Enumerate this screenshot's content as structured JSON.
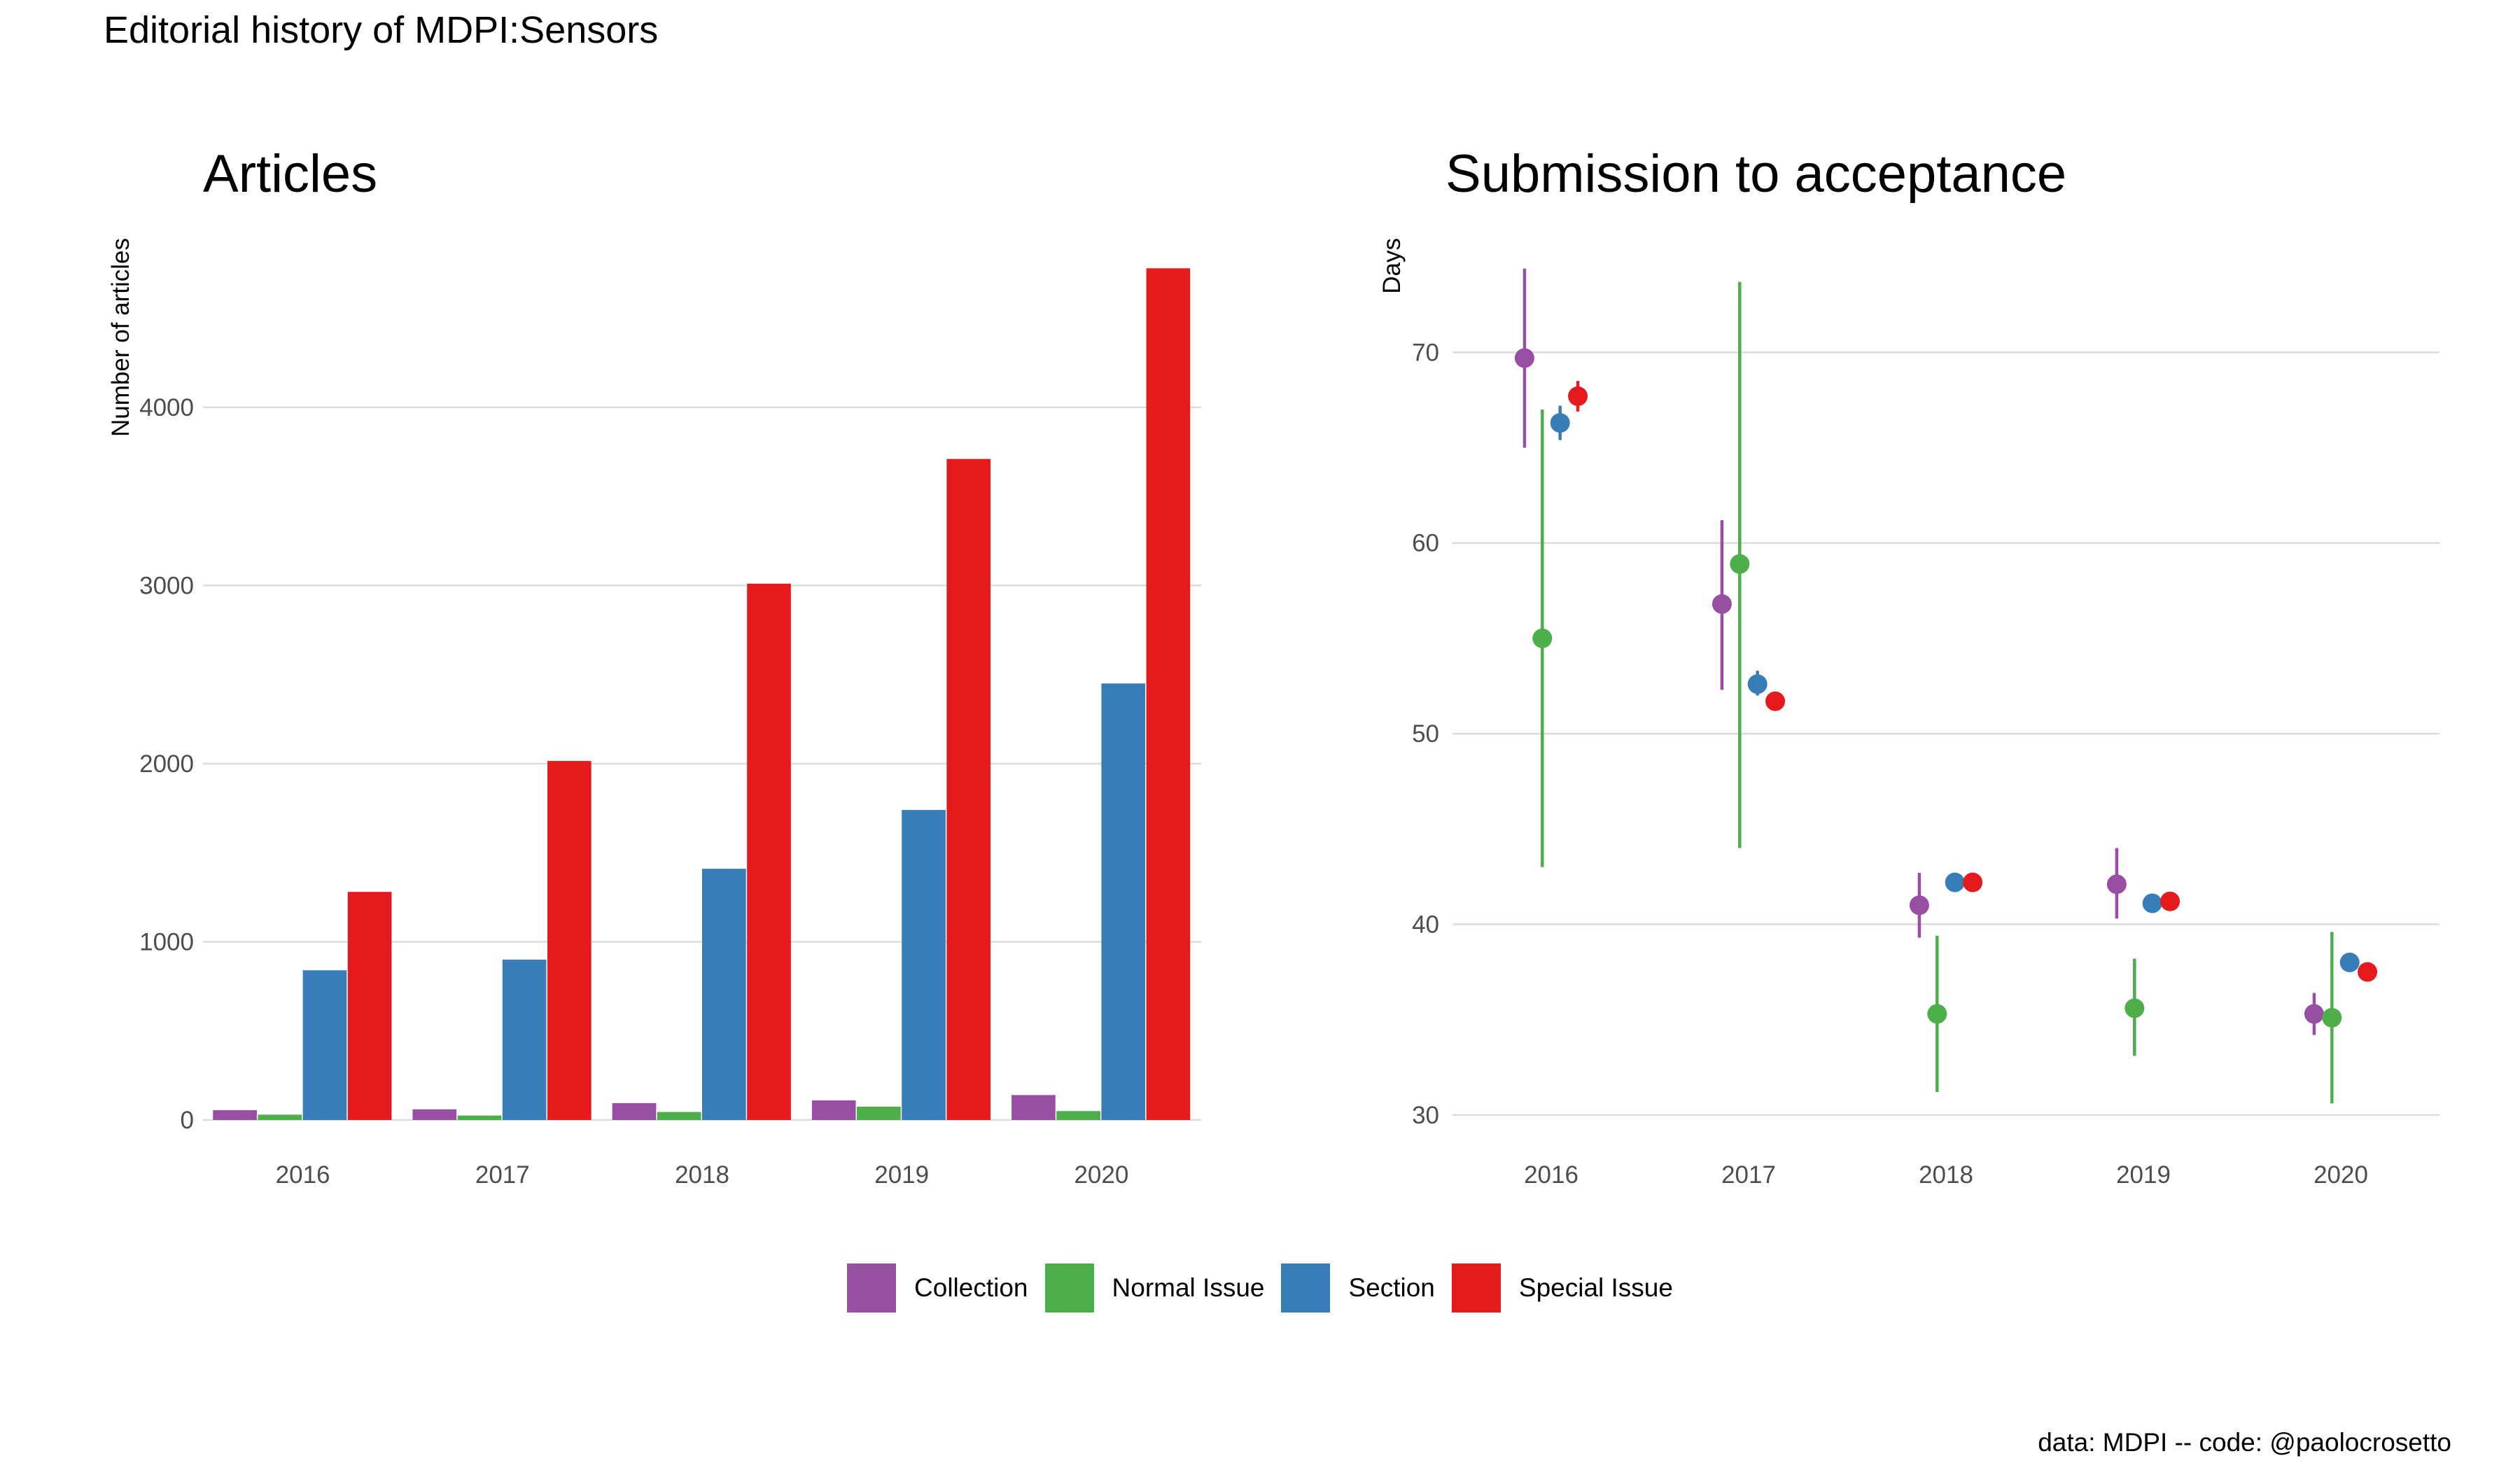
{
  "title": "Editorial history of MDPI:Sensors",
  "caption": "data: MDPI -- code: @paolocrosetto",
  "colors": {
    "Collection": "#984EA3",
    "Normal Issue": "#4DAF4A",
    "Section": "#377EB8",
    "Special Issue": "#E41A1C"
  },
  "legend": [
    "Collection",
    "Normal Issue",
    "Section",
    "Special Issue"
  ],
  "chart_data": [
    {
      "type": "bar",
      "title": "Articles",
      "xlabel": "",
      "ylabel": "Number of articles",
      "ylim": [
        0,
        4950
      ],
      "yticks": [
        0,
        1000,
        2000,
        3000,
        4000
      ],
      "grid": true,
      "legend_position": "bottom",
      "categories": [
        "2016",
        "2017",
        "2018",
        "2019",
        "2020"
      ],
      "series": [
        {
          "name": "Collection",
          "values": [
            55,
            60,
            95,
            110,
            140
          ]
        },
        {
          "name": "Normal Issue",
          "values": [
            30,
            25,
            45,
            75,
            50
          ]
        },
        {
          "name": "Section",
          "values": [
            840,
            900,
            1410,
            1740,
            2450
          ]
        },
        {
          "name": "Special Issue",
          "values": [
            1280,
            2015,
            3010,
            3710,
            4780
          ]
        }
      ]
    },
    {
      "type": "scatter",
      "title": "Submission to acceptance",
      "xlabel": "",
      "ylabel": "Days",
      "ylim": [
        29,
        76
      ],
      "yticks": [
        30,
        40,
        50,
        60,
        70
      ],
      "grid": true,
      "legend_position": "bottom",
      "categories": [
        "2016",
        "2017",
        "2018",
        "2019",
        "2020"
      ],
      "series": [
        {
          "name": "Collection",
          "values": [
            69.7,
            56.8,
            41.0,
            42.1,
            35.3
          ],
          "lower": [
            65.0,
            52.3,
            39.3,
            40.3,
            34.2
          ],
          "upper": [
            74.4,
            61.2,
            42.7,
            44.0,
            36.4
          ]
        },
        {
          "name": "Normal Issue",
          "values": [
            55.0,
            58.9,
            35.3,
            35.6,
            35.1
          ],
          "lower": [
            43.0,
            44.0,
            31.2,
            33.1,
            30.6
          ],
          "upper": [
            67.0,
            73.7,
            39.4,
            38.2,
            39.6
          ]
        },
        {
          "name": "Section",
          "values": [
            66.3,
            52.6,
            42.2,
            41.1,
            38.0
          ],
          "lower": [
            65.4,
            52.0,
            42.0,
            40.9,
            37.8
          ],
          "upper": [
            67.2,
            53.3,
            42.4,
            41.3,
            38.3
          ]
        },
        {
          "name": "Special Issue",
          "values": [
            67.7,
            51.7,
            42.2,
            41.2,
            37.5
          ],
          "lower": [
            66.9,
            51.3,
            42.0,
            40.9,
            37.2
          ],
          "upper": [
            68.5,
            52.1,
            42.4,
            41.5,
            37.8
          ]
        }
      ]
    }
  ]
}
